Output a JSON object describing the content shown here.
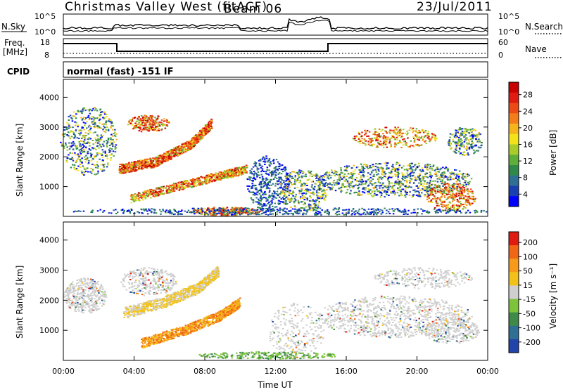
{
  "header": {
    "station": "Christmas Valley West (fitACF)",
    "beam": "Beam 06",
    "date": "23/Jul/2011"
  },
  "noise_panel": {
    "left_label": "N.Sky",
    "left_ticks": [
      "10^5",
      "10^0"
    ],
    "right_label": "N.Search",
    "right_ticks": [
      "10^5",
      "10^0"
    ]
  },
  "freq_panel": {
    "left_label_1": "Freq.",
    "left_label_2": "[MHz]",
    "left_ticks": [
      "18",
      "8"
    ],
    "right_label": "Nave",
    "right_ticks": [
      "60",
      "0"
    ]
  },
  "cpid_panel": {
    "label": "CPID",
    "text": "normal (fast) -151 IF"
  },
  "power_panel": {
    "ylabel": "Slant Range [km]",
    "yticks": [
      "4000",
      "3000",
      "2000",
      "1000"
    ],
    "colorbar_label": "Power [dB]",
    "colorbar_ticks": [
      "28",
      "24",
      "20",
      "16",
      "12",
      "8",
      "4"
    ],
    "colors": [
      "#0000ff",
      "#1a3fb0",
      "#2e6f93",
      "#2f8a4a",
      "#5fae3a",
      "#a8cc2a",
      "#f2e21a",
      "#f5b31c",
      "#f27d1a",
      "#ec4a16",
      "#e01c12",
      "#c80000"
    ]
  },
  "velocity_panel": {
    "ylabel": "Slant Range [km]",
    "yticks": [
      "4000",
      "3000",
      "2000",
      "1000"
    ],
    "colorbar_label": "Velocity [m s⁻¹]",
    "colorbar_ticks": [
      "200",
      "100",
      "50",
      "15",
      "-15",
      "-50",
      "-100",
      "-200"
    ],
    "colors": [
      "#2244aa",
      "#2e6f93",
      "#3f8a48",
      "#7ec43a",
      "#cfcfcf",
      "#f2c21a",
      "#f59a1a",
      "#f06614",
      "#e01c12"
    ]
  },
  "x_axis": {
    "label": "Time UT",
    "ticks": [
      "00:00",
      "04:00",
      "08:00",
      "12:00",
      "16:00",
      "20:00",
      "00:00"
    ]
  }
}
